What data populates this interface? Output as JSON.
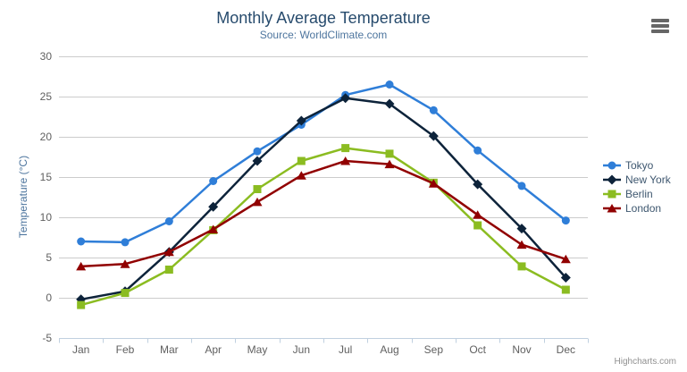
{
  "chart_data": {
    "type": "line",
    "title": "Monthly Average Temperature",
    "subtitle": "Source: WorldClimate.com",
    "categories": [
      "Jan",
      "Feb",
      "Mar",
      "Apr",
      "May",
      "Jun",
      "Jul",
      "Aug",
      "Sep",
      "Oct",
      "Nov",
      "Dec"
    ],
    "xlabel": "",
    "ylabel": "Temperature (°C)",
    "ylim": [
      -5,
      30
    ],
    "ytick_step": 5,
    "grid": true,
    "legend_position": "right",
    "series": [
      {
        "name": "Tokyo",
        "color": "#2f7ed8",
        "marker": "circle",
        "values": [
          7.0,
          6.9,
          9.5,
          14.5,
          18.2,
          21.5,
          25.2,
          26.5,
          23.3,
          18.3,
          13.9,
          9.6
        ]
      },
      {
        "name": "New York",
        "color": "#0d233a",
        "marker": "diamond",
        "values": [
          -0.2,
          0.8,
          5.7,
          11.3,
          17.0,
          22.0,
          24.8,
          24.1,
          20.1,
          14.1,
          8.6,
          2.5
        ]
      },
      {
        "name": "Berlin",
        "color": "#8bbc21",
        "marker": "square",
        "values": [
          -0.9,
          0.6,
          3.5,
          8.4,
          13.5,
          17.0,
          18.6,
          17.9,
          14.3,
          9.0,
          3.9,
          1.0
        ]
      },
      {
        "name": "London",
        "color": "#910000",
        "marker": "triangle",
        "values": [
          3.9,
          4.2,
          5.7,
          8.5,
          11.9,
          15.2,
          17.0,
          16.6,
          14.2,
          10.3,
          6.6,
          4.8
        ]
      }
    ],
    "styles": {
      "title_color": "#274b6d",
      "subtitle_color": "#4d759e",
      "axis_label_color": "#606060",
      "axis_title_color": "#4d759e",
      "legend_text_color": "#3E576F",
      "gridline_color": "#CCCCCC",
      "axis_line_color": "#C0D0E0",
      "credits_color": "#909090"
    }
  },
  "credits": {
    "text": "Highcharts.com"
  },
  "export_menu": {
    "icon": "hamburger-icon"
  }
}
